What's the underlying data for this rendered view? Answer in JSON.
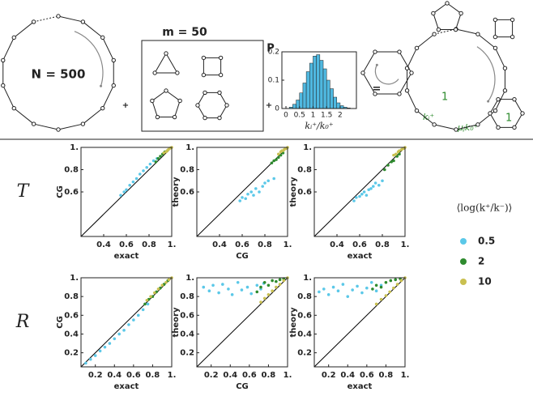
{
  "diagram": {
    "n_label": "N = 500",
    "m_label": "m = 50",
    "plus1": "+",
    "plus2": "+",
    "equals": "=",
    "edge_labels": [
      "1",
      "kᵢ⁺",
      "μⱼk₀⁺",
      "1"
    ]
  },
  "figure": {
    "row_labels": [
      "T",
      "R"
    ],
    "legend_title": "⟨log(k⁺/k⁻)⟩"
  },
  "chart_data": [
    {
      "type": "histogram",
      "ylabel": "P",
      "xlabel": "kᵢ⁺/k₀⁺",
      "color": "#4fb8e0",
      "bins": [
        0.125,
        0.25,
        0.375,
        0.5,
        0.625,
        0.75,
        0.875,
        1,
        1.125,
        1.25,
        1.375,
        1.5,
        1.625,
        1.75,
        1.875,
        2,
        2.125,
        2.25,
        2.375
      ],
      "values": [
        0.005,
        0.015,
        0.03,
        0.055,
        0.09,
        0.13,
        0.16,
        0.185,
        0.19,
        0.17,
        0.14,
        0.1,
        0.07,
        0.04,
        0.02,
        0.01,
        0.005,
        0.002
      ],
      "xlim": [
        -0.15,
        2.6
      ],
      "xticks": [
        0,
        0.5,
        1,
        1.5,
        2
      ],
      "ylim": [
        0,
        0.2
      ],
      "yticks": [
        0,
        0.1,
        0.2
      ]
    },
    {
      "type": "scatter",
      "xlabel": "exact",
      "ylabel": "CG",
      "xlim": [
        0.2,
        1
      ],
      "ylim": [
        0.2,
        1
      ],
      "xticks": [
        0.4,
        0.6,
        0.8,
        {
          "value": 1,
          "label": "1."
        }
      ],
      "yticks": [
        0.6,
        0.8,
        {
          "value": 1,
          "label": "1."
        }
      ],
      "series": [
        {
          "name": "0.5",
          "color": "#5bc8e8",
          "x": [
            0.55,
            0.58,
            0.6,
            0.63,
            0.66,
            0.69,
            0.72,
            0.75,
            0.78,
            0.81,
            0.84,
            0.87
          ],
          "values": [
            0.57,
            0.6,
            0.62,
            0.66,
            0.69,
            0.72,
            0.76,
            0.79,
            0.82,
            0.85,
            0.88,
            0.9
          ]
        },
        {
          "name": "2",
          "color": "#2e8b2e",
          "x": [
            0.86,
            0.88,
            0.9,
            0.92,
            0.94,
            0.96
          ],
          "values": [
            0.87,
            0.9,
            0.92,
            0.94,
            0.96,
            0.97
          ]
        },
        {
          "name": "10",
          "color": "#c9c050",
          "x": [
            0.93,
            0.95,
            0.96,
            0.97,
            0.98,
            0.99,
            1
          ],
          "values": [
            0.95,
            0.96,
            0.97,
            0.98,
            0.99,
            0.995,
            1
          ]
        }
      ]
    },
    {
      "type": "scatter",
      "xlabel": "CG",
      "ylabel": "theory",
      "xlim": [
        0.2,
        1
      ],
      "ylim": [
        0.2,
        1
      ],
      "xticks": [
        0.4,
        0.6,
        0.8,
        {
          "value": 1,
          "label": "1."
        }
      ],
      "yticks": [
        0.6,
        0.8,
        {
          "value": 1,
          "label": "1."
        }
      ],
      "series": [
        {
          "name": "0.5",
          "color": "#5bc8e8",
          "x": [
            0.58,
            0.6,
            0.63,
            0.65,
            0.68,
            0.7,
            0.72,
            0.75,
            0.78,
            0.8,
            0.83,
            0.88
          ],
          "values": [
            0.52,
            0.55,
            0.54,
            0.58,
            0.6,
            0.57,
            0.63,
            0.6,
            0.65,
            0.68,
            0.7,
            0.72
          ]
        },
        {
          "name": "2",
          "color": "#2e8b2e",
          "x": [
            0.86,
            0.88,
            0.9,
            0.92,
            0.94,
            0.96
          ],
          "values": [
            0.86,
            0.88,
            0.89,
            0.91,
            0.93,
            0.95
          ]
        },
        {
          "name": "10",
          "color": "#c9c050",
          "x": [
            0.92,
            0.94,
            0.95,
            0.96,
            0.97,
            0.98,
            0.99,
            1
          ],
          "values": [
            0.94,
            0.96,
            0.97,
            0.97,
            0.98,
            0.99,
            0.99,
            1
          ]
        }
      ]
    },
    {
      "type": "scatter",
      "xlabel": "exact",
      "ylabel": "theory",
      "xlim": [
        0.2,
        1
      ],
      "ylim": [
        0.2,
        1
      ],
      "xticks": [
        0.4,
        0.6,
        0.8,
        {
          "value": 1,
          "label": "1."
        }
      ],
      "yticks": [
        0.6,
        0.8,
        {
          "value": 1,
          "label": "1."
        }
      ],
      "series": [
        {
          "name": "0.5",
          "color": "#5bc8e8",
          "x": [
            0.55,
            0.57,
            0.6,
            0.62,
            0.64,
            0.66,
            0.68,
            0.7,
            0.72,
            0.74,
            0.77,
            0.8
          ],
          "values": [
            0.52,
            0.55,
            0.56,
            0.58,
            0.6,
            0.57,
            0.62,
            0.63,
            0.65,
            0.68,
            0.66,
            0.7
          ]
        },
        {
          "name": "2",
          "color": "#2e8b2e",
          "x": [
            0.82,
            0.85,
            0.88,
            0.9,
            0.93,
            0.95
          ],
          "values": [
            0.8,
            0.84,
            0.87,
            0.88,
            0.92,
            0.94
          ]
        },
        {
          "name": "10",
          "color": "#c9c050",
          "x": [
            0.9,
            0.92,
            0.94,
            0.95,
            0.97,
            0.98,
            0.99,
            1
          ],
          "values": [
            0.93,
            0.94,
            0.96,
            0.97,
            0.98,
            0.99,
            0.99,
            1
          ]
        }
      ]
    },
    {
      "type": "scatter",
      "xlabel": "exact",
      "ylabel": "CG",
      "xlim": [
        0.05,
        1
      ],
      "ylim": [
        0.05,
        1
      ],
      "xticks": [
        0.2,
        0.4,
        0.6,
        0.8,
        {
          "value": 1,
          "label": "1."
        }
      ],
      "yticks": [
        0.2,
        0.4,
        0.6,
        0.8,
        {
          "value": 1,
          "label": "1."
        }
      ],
      "series": [
        {
          "name": "0.5",
          "color": "#5bc8e8",
          "x": [
            0.1,
            0.15,
            0.2,
            0.25,
            0.3,
            0.35,
            0.4,
            0.45,
            0.5,
            0.55,
            0.6,
            0.65,
            0.7,
            0.75
          ],
          "values": [
            0.09,
            0.13,
            0.17,
            0.22,
            0.26,
            0.3,
            0.35,
            0.4,
            0.44,
            0.5,
            0.55,
            0.6,
            0.66,
            0.72
          ]
        },
        {
          "name": "2",
          "color": "#2e8b2e",
          "x": [
            0.72,
            0.76,
            0.8,
            0.84,
            0.88,
            0.92,
            0.96
          ],
          "values": [
            0.72,
            0.77,
            0.8,
            0.85,
            0.89,
            0.93,
            0.97
          ]
        },
        {
          "name": "10",
          "color": "#c9c050",
          "x": [
            0.74,
            0.78,
            0.82,
            0.86,
            0.9,
            0.94,
            0.97,
            1
          ],
          "values": [
            0.76,
            0.8,
            0.84,
            0.88,
            0.92,
            0.95,
            0.98,
            1
          ]
        }
      ]
    },
    {
      "type": "scatter",
      "xlabel": "CG",
      "ylabel": "theory",
      "xlim": [
        0.05,
        1
      ],
      "ylim": [
        0.05,
        1
      ],
      "xticks": [
        0.2,
        0.4,
        0.6,
        0.8,
        {
          "value": 1,
          "label": "1."
        }
      ],
      "yticks": [
        0.2,
        0.4,
        0.6,
        0.8,
        {
          "value": 1,
          "label": "1."
        }
      ],
      "series": [
        {
          "name": "0.5",
          "color": "#5bc8e8",
          "x": [
            0.12,
            0.18,
            0.22,
            0.28,
            0.32,
            0.38,
            0.42,
            0.48,
            0.52,
            0.58,
            0.62,
            0.68,
            0.72,
            0.75
          ],
          "values": [
            0.9,
            0.86,
            0.92,
            0.84,
            0.93,
            0.88,
            0.82,
            0.95,
            0.87,
            0.9,
            0.83,
            0.92,
            0.88,
            0.94
          ]
        },
        {
          "name": "2",
          "color": "#2e8b2e",
          "x": [
            0.68,
            0.72,
            0.76,
            0.8,
            0.84,
            0.88,
            0.92,
            0.96
          ],
          "values": [
            0.85,
            0.9,
            0.95,
            0.92,
            0.97,
            0.96,
            0.98,
            0.99
          ]
        },
        {
          "name": "10",
          "color": "#c9c050",
          "x": [
            0.72,
            0.76,
            0.8,
            0.84,
            0.88,
            0.92,
            0.96,
            1
          ],
          "values": [
            0.74,
            0.78,
            0.82,
            0.86,
            0.9,
            0.93,
            0.97,
            1
          ]
        }
      ]
    },
    {
      "type": "scatter",
      "xlabel": "exact",
      "ylabel": "theory",
      "xlim": [
        0.05,
        1
      ],
      "ylim": [
        0.05,
        1
      ],
      "xticks": [
        0.2,
        0.4,
        0.6,
        0.8,
        {
          "value": 1,
          "label": "1."
        }
      ],
      "yticks": [
        0.2,
        0.4,
        0.6,
        0.8,
        {
          "value": 1,
          "label": "1."
        }
      ],
      "series": [
        {
          "name": "0.5",
          "color": "#5bc8e8",
          "x": [
            0.1,
            0.15,
            0.2,
            0.25,
            0.3,
            0.35,
            0.4,
            0.45,
            0.5,
            0.55,
            0.6,
            0.65,
            0.7,
            0.75
          ],
          "values": [
            0.85,
            0.88,
            0.82,
            0.9,
            0.86,
            0.93,
            0.8,
            0.87,
            0.91,
            0.84,
            0.89,
            0.95,
            0.86,
            0.92
          ]
        },
        {
          "name": "2",
          "color": "#2e8b2e",
          "x": [
            0.66,
            0.7,
            0.75,
            0.8,
            0.85,
            0.9,
            0.95
          ],
          "values": [
            0.88,
            0.92,
            0.9,
            0.95,
            0.97,
            0.98,
            0.99
          ]
        },
        {
          "name": "10",
          "color": "#c9c050",
          "x": [
            0.7,
            0.75,
            0.8,
            0.84,
            0.88,
            0.92,
            0.96,
            1
          ],
          "values": [
            0.72,
            0.77,
            0.81,
            0.85,
            0.89,
            0.93,
            0.97,
            1
          ]
        }
      ]
    }
  ]
}
